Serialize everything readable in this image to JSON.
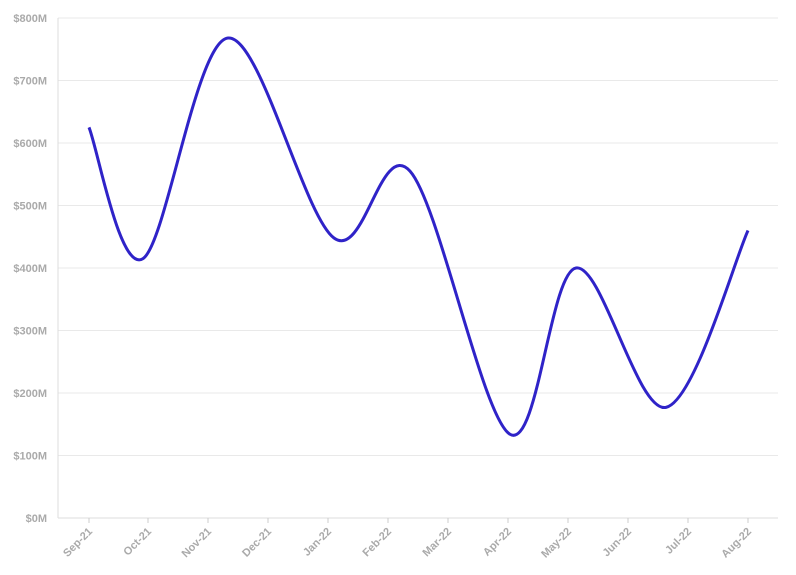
{
  "chart_data": {
    "type": "line",
    "categories": [
      "Sep-21",
      "Oct-21",
      "Nov-21",
      "Dec-21",
      "Jan-22",
      "Feb-22",
      "Mar-22",
      "Apr-22",
      "May-22",
      "Jun-22",
      "Jul-22",
      "Aug-22"
    ],
    "x_positions": [
      0.5,
      1.4,
      2.6,
      4.3,
      5.4,
      6.6,
      7.5,
      8.5,
      9.9,
      10.1,
      11.3,
      12.3
    ],
    "series": [
      {
        "color": "#2f23c8",
        "points": [
          {
            "x": "Sep-21",
            "y": 625
          },
          {
            "x": "Oct-21",
            "y": 415
          },
          {
            "x": "Nov-21",
            "y": 768
          },
          {
            "x": "Jan-22",
            "y": 448
          },
          {
            "x": "Feb-22",
            "y": 555
          },
          {
            "x": "Apr-22",
            "y": 134
          },
          {
            "x": "May-22",
            "y": 400
          },
          {
            "x": "Jul-22",
            "y": 177
          },
          {
            "x": "Aug-22",
            "y": 460
          }
        ]
      }
    ],
    "y_ticks": [
      "$0M",
      "$100M",
      "$200M",
      "$300M",
      "$400M",
      "$500M",
      "$600M",
      "$700M",
      "$800M"
    ],
    "ylim": [
      0,
      800
    ],
    "grid": true,
    "legend": "none"
  }
}
